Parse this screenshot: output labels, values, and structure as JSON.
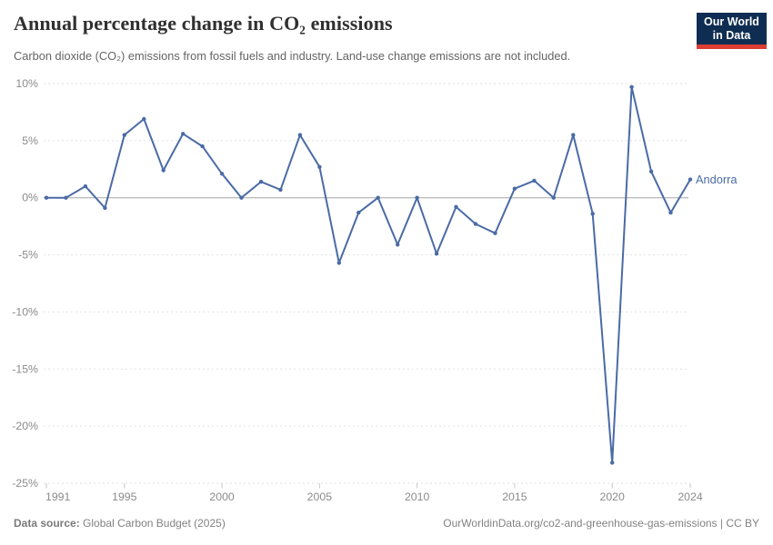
{
  "chart_data": {
    "type": "line",
    "title": "Annual percentage change in CO₂ emissions",
    "subtitle": "Carbon dioxide (CO₂) emissions from fossil fuels and industry. Land-use change emissions are not included.",
    "x": [
      1991,
      1992,
      1993,
      1994,
      1995,
      1996,
      1997,
      1998,
      1999,
      2000,
      2001,
      2002,
      2003,
      2004,
      2005,
      2006,
      2007,
      2008,
      2009,
      2010,
      2011,
      2012,
      2013,
      2014,
      2015,
      2016,
      2017,
      2018,
      2019,
      2020,
      2021,
      2022,
      2023,
      2024
    ],
    "series": [
      {
        "name": "Andorra",
        "color": "#4a6ba5",
        "values": [
          0.0,
          0.0,
          1.0,
          -0.9,
          5.5,
          6.9,
          2.4,
          5.6,
          4.5,
          2.1,
          0.0,
          1.4,
          0.7,
          5.5,
          2.7,
          -5.7,
          -1.3,
          0.0,
          -4.1,
          0.0,
          -4.9,
          -0.8,
          -2.3,
          -3.1,
          0.8,
          1.5,
          0.0,
          5.5,
          -1.4,
          -23.2,
          9.7,
          2.3,
          -1.3,
          1.6
        ]
      }
    ],
    "xlim": [
      1991,
      2024
    ],
    "ylim": [
      -25,
      10
    ],
    "x_ticks": [
      1991,
      1995,
      2000,
      2005,
      2010,
      2015,
      2020,
      2024
    ],
    "x_tick_labels": [
      "1991",
      "1995",
      "2000",
      "2005",
      "2010",
      "2015",
      "2020",
      "2024"
    ],
    "y_ticks": [
      10,
      5,
      0,
      -5,
      -10,
      -15,
      -20,
      -25
    ],
    "y_tick_labels": [
      "10%",
      "5%",
      "0%",
      "-5%",
      "-10%",
      "-15%",
      "-20%",
      "-25%"
    ],
    "grid": "horizontal-dashed",
    "zero_line": true,
    "legend_position": "end-of-line-label",
    "xlabel": "",
    "ylabel": ""
  },
  "logo": {
    "line1": "Our World",
    "line2": "in Data"
  },
  "footer": {
    "datasource_label": "Data source:",
    "datasource_value": "Global Carbon Budget (2025)",
    "attribution": "OurWorldinData.org/co2-and-greenhouse-gas-emissions | CC BY"
  },
  "colors": {
    "line": "#4a6ba5",
    "gridline": "#e2e2e2",
    "zero_line": "#a5a5a5",
    "axis_tick": "#c6c6c6",
    "axis_label": "#8b8b8b",
    "title": "#303030",
    "subtitle": "#646464",
    "footer_text": "#828282",
    "logo_bg": "#0f2d52",
    "logo_accent": "#dc3e34"
  }
}
